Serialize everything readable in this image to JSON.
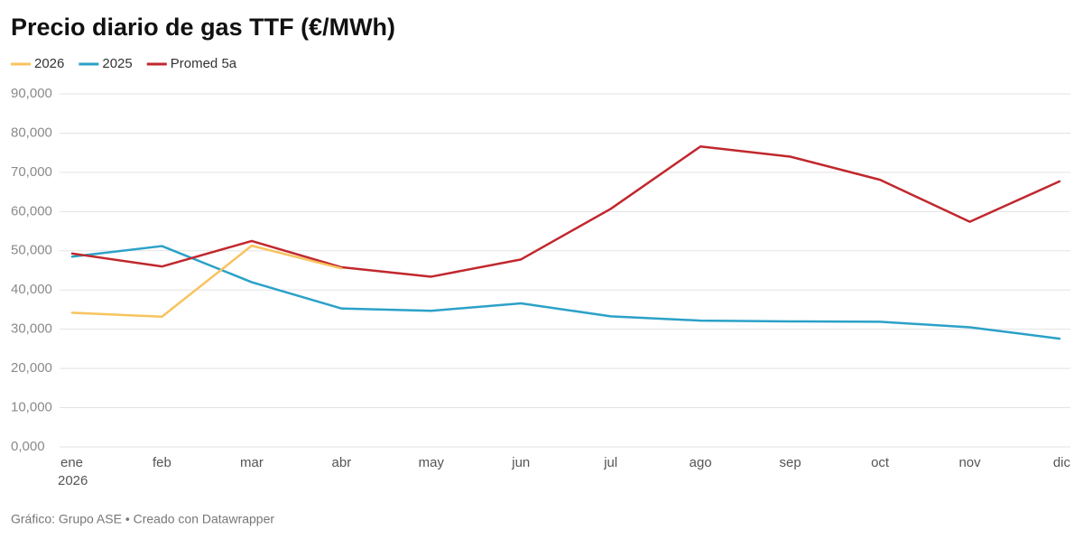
{
  "chart_data": {
    "type": "line",
    "title": "Precio diario de gas TTF (€/MWh)",
    "footer": "Gráfico: Grupo ASE • Creado con Datawrapper",
    "categories": [
      "ene",
      "feb",
      "mar",
      "abr",
      "may",
      "jun",
      "jul",
      "ago",
      "sep",
      "oct",
      "nov",
      "dic"
    ],
    "first_category_sublabel": "2026",
    "series": [
      {
        "name": "2026",
        "color": "#f8c35e",
        "values": [
          34.2,
          33.2,
          51.3,
          45.5,
          null,
          null,
          null,
          null,
          null,
          null,
          null,
          null
        ]
      },
      {
        "name": "2025",
        "color": "#2ba1c8",
        "values": [
          48.5,
          51.2,
          42.0,
          35.3,
          34.7,
          36.6,
          33.3,
          32.2,
          32.0,
          31.9,
          30.5,
          27.6
        ]
      },
      {
        "name": "Promed 5a",
        "color": "#c1272d",
        "values": [
          49.3,
          46.0,
          52.5,
          45.8,
          43.4,
          47.8,
          60.7,
          76.6,
          74.0,
          68.1,
          57.4,
          67.7
        ]
      }
    ],
    "ylim": [
      0,
      90
    ],
    "yticks": [
      {
        "value": 0,
        "label": "0,000"
      },
      {
        "value": 10,
        "label": "10,000"
      },
      {
        "value": 20,
        "label": "20,000"
      },
      {
        "value": 30,
        "label": "30,000"
      },
      {
        "value": 40,
        "label": "40,000"
      },
      {
        "value": 50,
        "label": "50,000"
      },
      {
        "value": 60,
        "label": "60,000"
      },
      {
        "value": 70,
        "label": "70,000"
      },
      {
        "value": 80,
        "label": "80,000"
      },
      {
        "value": 90,
        "label": "90,000"
      }
    ],
    "grid": true
  }
}
